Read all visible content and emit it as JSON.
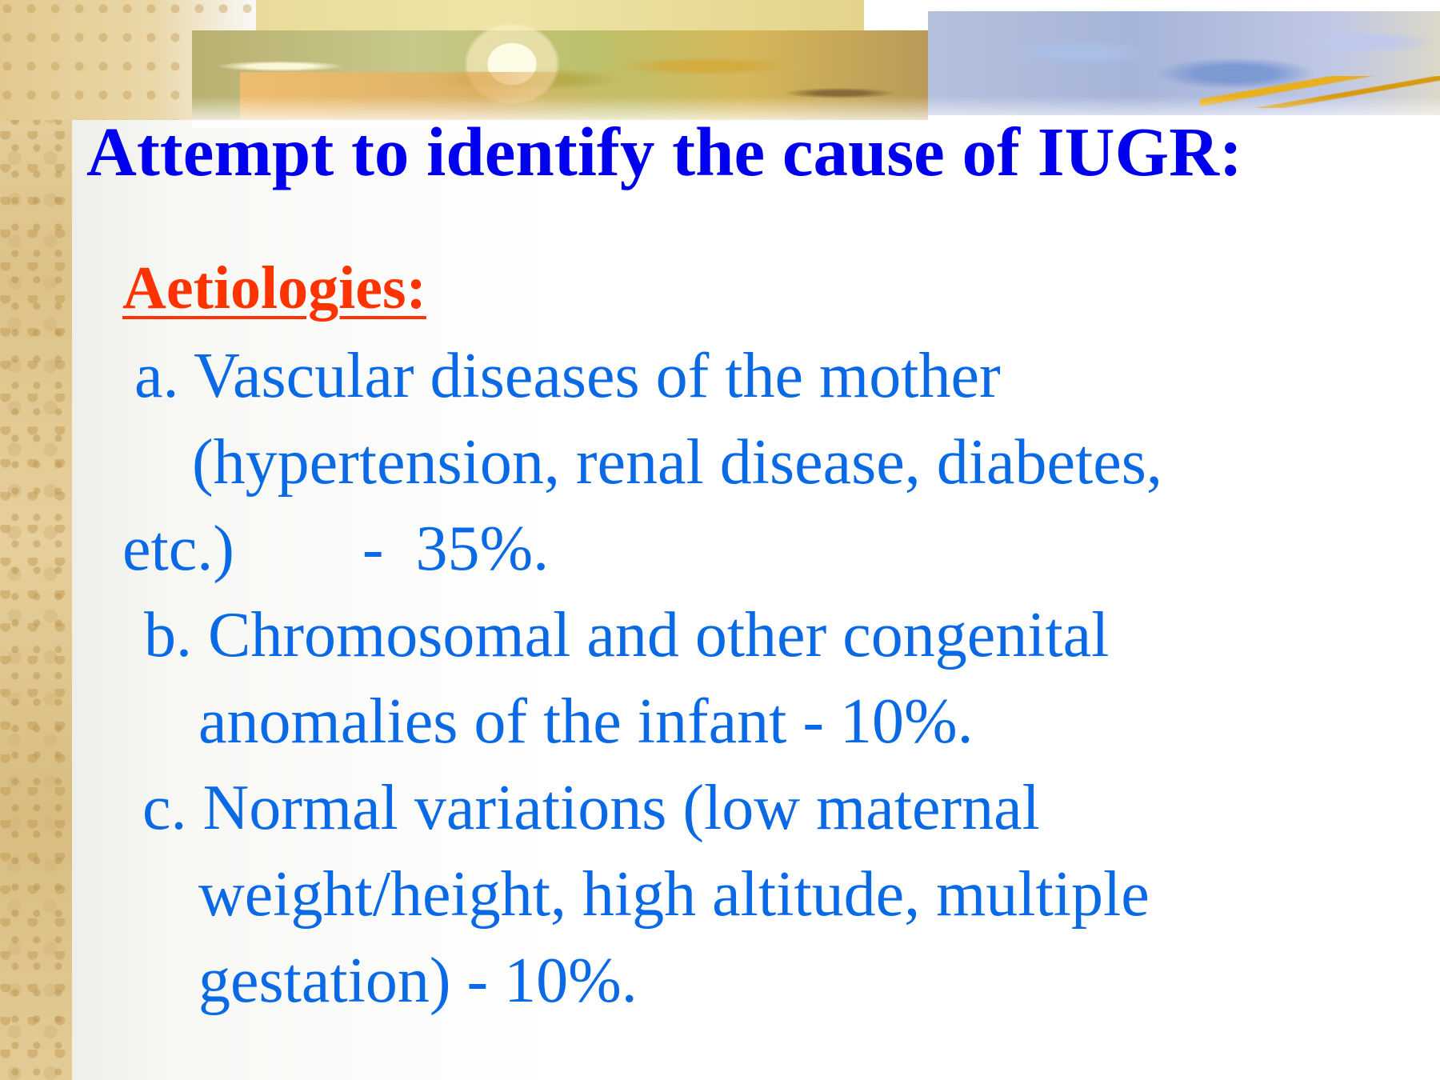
{
  "slide": {
    "title": "Attempt to identify the cause of IUGR:",
    "subheading": "Aetiologies:",
    "lines": [
      " a. Vascular diseases of the mother",
      "   (hypertension, renal disease, diabetes,",
      "etc.)        -  35%.",
      " b. Chromosomal and other congenital",
      "    anomalies of the infant - 10%.",
      " c. Normal variations (low maternal",
      "    weight/height, high altitude, multiple",
      "    gestation) - 10%."
    ]
  },
  "colors": {
    "title": "#0000ee",
    "subheading": "#ff3300",
    "body": "#0a6ae6"
  }
}
